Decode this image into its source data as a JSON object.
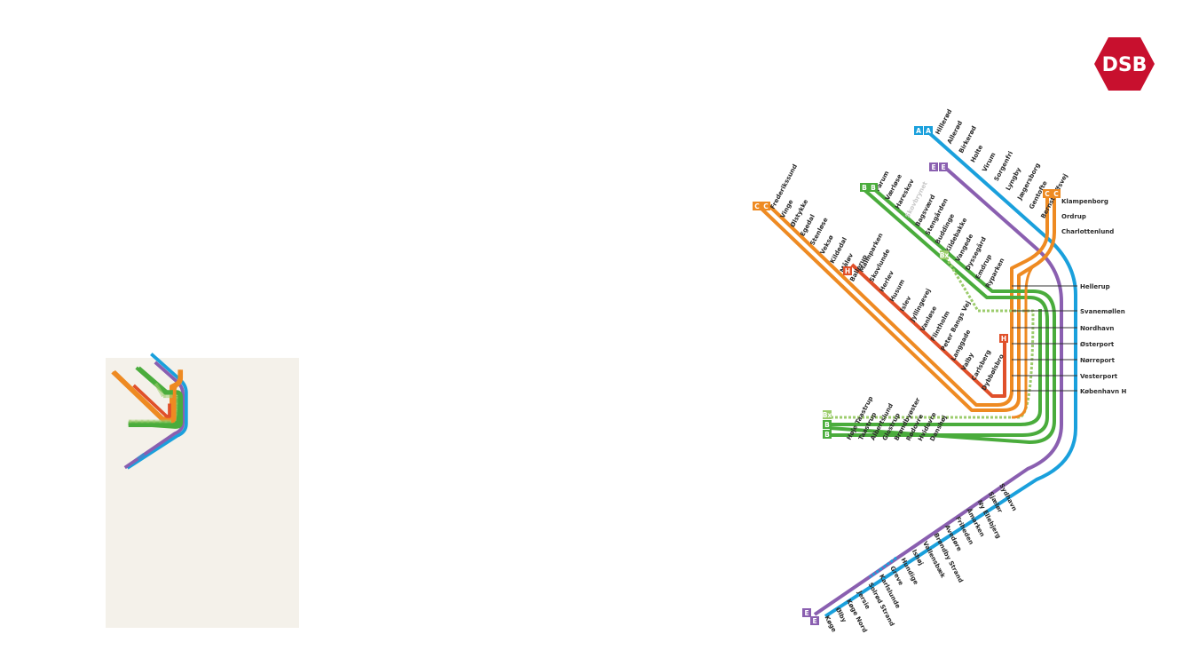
{
  "brand": {
    "logo_text": "DSB",
    "logo_color": "#c8102e"
  },
  "lines": {
    "A": {
      "color": "#1aa0dc"
    },
    "B": {
      "color": "#4aac3c"
    },
    "Bx": {
      "color": "#9ccc6c"
    },
    "C": {
      "color": "#ee8a22"
    },
    "E": {
      "color": "#8a5fb0"
    },
    "F": {
      "color": "#ff0000"
    },
    "H": {
      "color": "#e0502a"
    }
  },
  "badges": {
    "a": "A",
    "e": "E",
    "b": "B",
    "bx": "Bx",
    "c": "C",
    "h": "H"
  },
  "stations": {
    "a_north": [
      "Hillerød",
      "Allerød",
      "Birkerød",
      "Holte",
      "Virum",
      "Sorgenfri",
      "Lyngby",
      "Jægersborg",
      "Gentofte",
      "Bernstorffsvej"
    ],
    "c_coast": [
      "Klampenborg",
      "Ordrup",
      "Charlottenlund"
    ],
    "trunk": [
      "Hellerup",
      "Svanemøllen",
      "Nordhavn",
      "Østerport",
      "Nørreport",
      "Vesterport",
      "København H"
    ],
    "b_north": [
      "Farum",
      "Værløse",
      "Hareskov",
      "Skovbrynet",
      "Bagsværd",
      "Stengården",
      "Buddinge",
      "Kildebakke",
      "Vangede",
      "Dyssegård",
      "Emdrup",
      "Ryparken"
    ],
    "c_west": [
      "Frederikssund",
      "Vinge",
      "Ølstykke",
      "Egedal",
      "Stenløse",
      "Veksø",
      "Kildedal",
      "Måløv",
      "Ballerup"
    ],
    "h_line": [
      "Malmparken",
      "Skovlunde",
      "Herlev",
      "Husum",
      "Islev",
      "Jyllingevej",
      "Vanløse",
      "Flintholm",
      "Peter Bangs Vej",
      "Langgade",
      "Valby",
      "Carlsberg",
      "Dybbølsbro"
    ],
    "b_west": [
      "Høje Taastrup",
      "Taastrup",
      "Albertslund",
      "Glostrup",
      "Brøndbyøster",
      "Rødovre",
      "Hvidovre",
      "Danshøj"
    ],
    "south": [
      "Sydhavn",
      "Sjælør",
      "Ny Ellebjerg",
      "Åmarken",
      "Friheden",
      "Avedøre",
      "Brøndby Strand",
      "Vallensbæk",
      "Ishøj",
      "Hundige",
      "Greve",
      "Karlslunde",
      "Solrød Strand",
      "Jersie",
      "Køge Nord",
      "Ølby",
      "Køge"
    ]
  }
}
